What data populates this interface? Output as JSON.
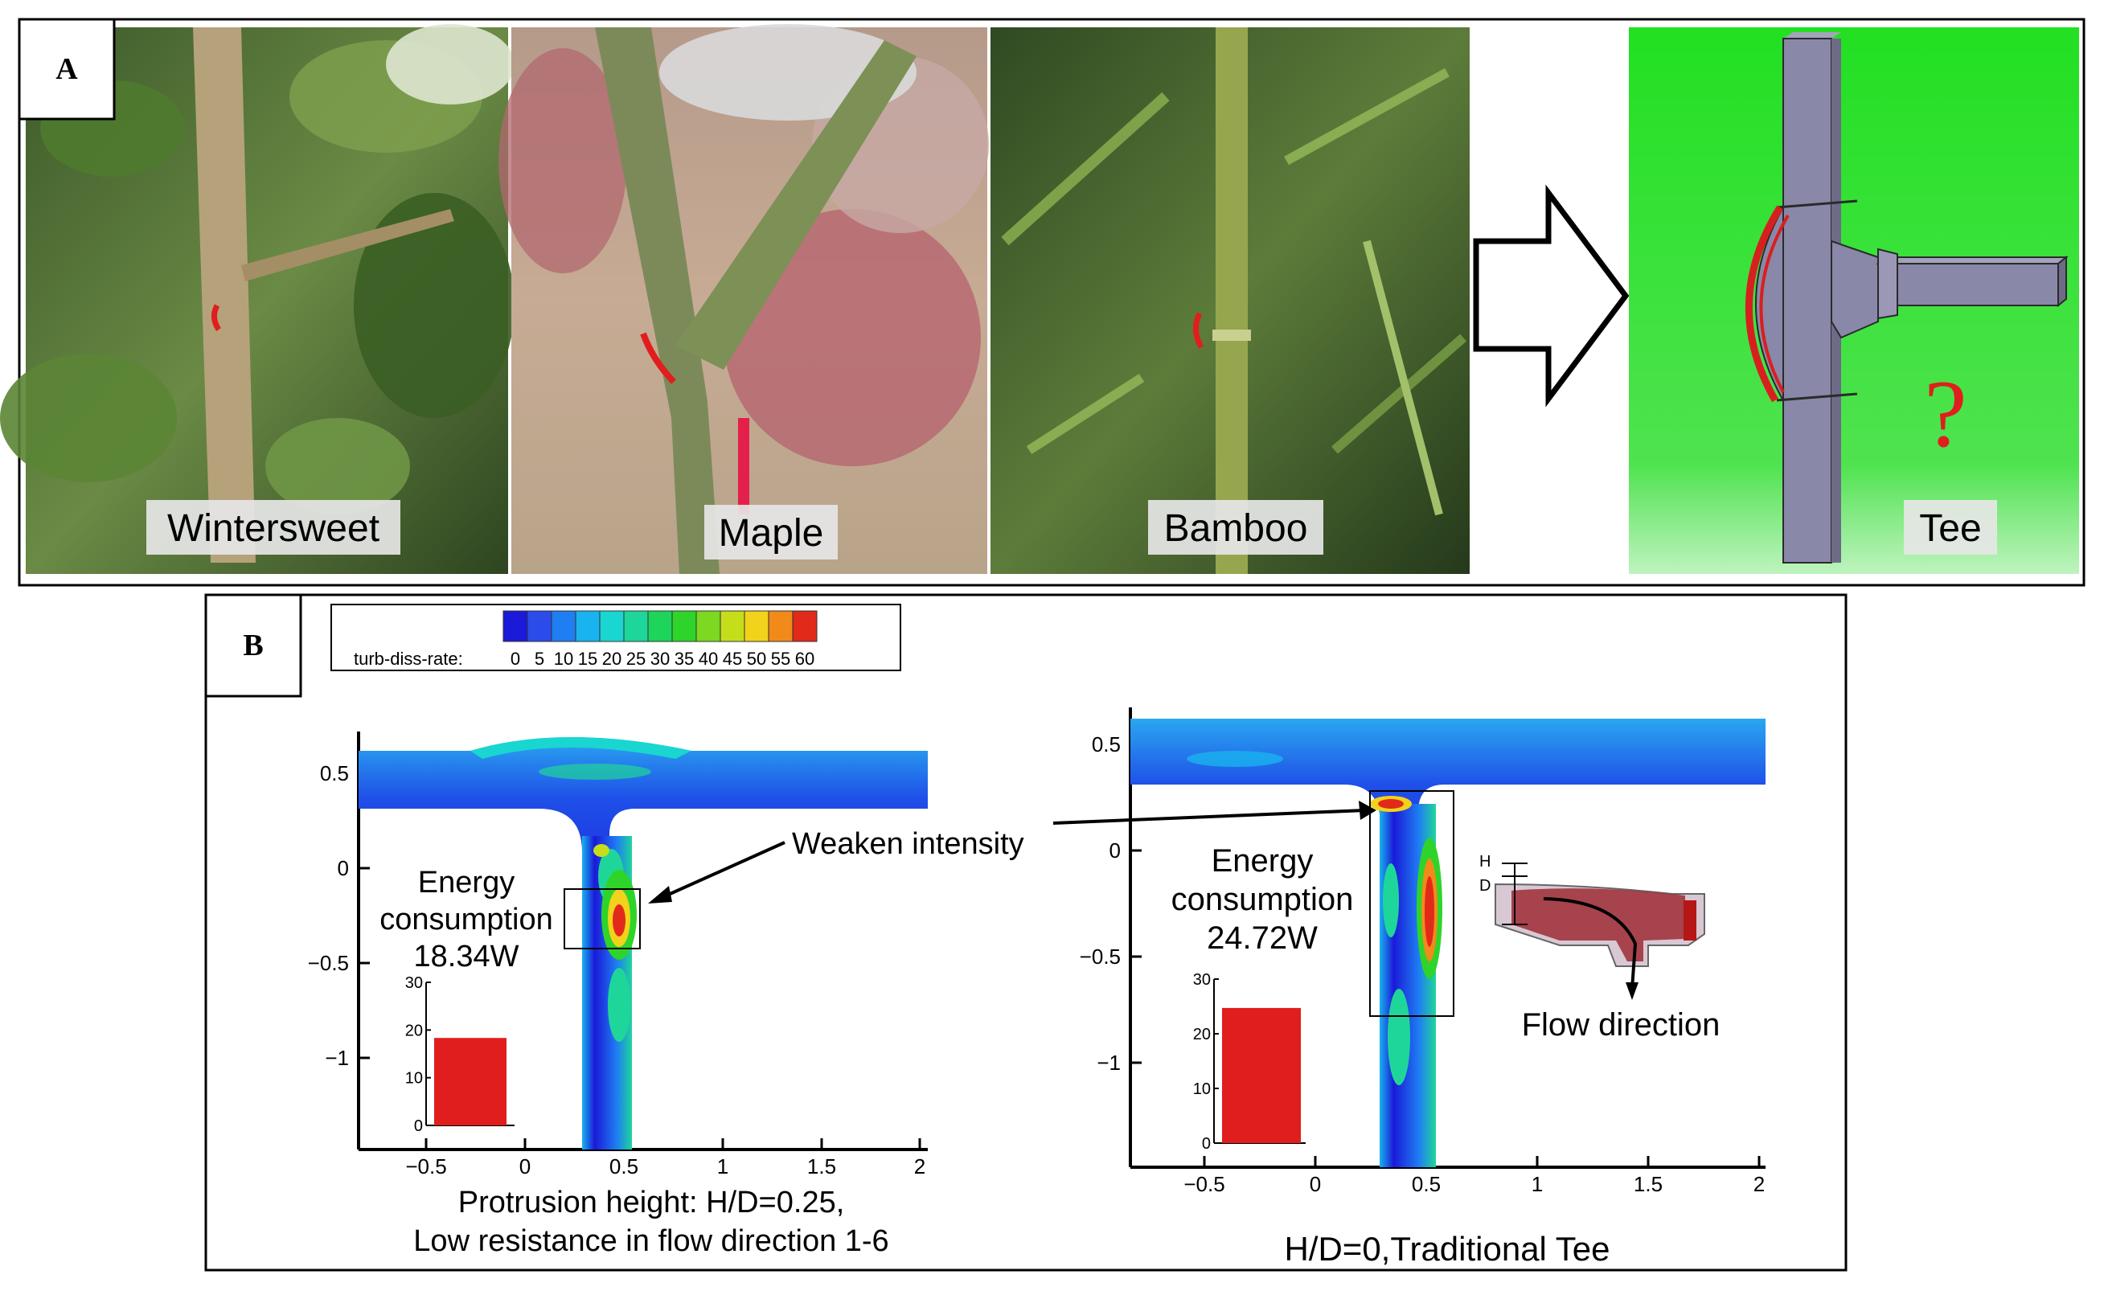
{
  "panel_a": {
    "label": "A",
    "photos": [
      {
        "name": "wintersweet",
        "caption": "Wintersweet"
      },
      {
        "name": "maple",
        "caption": "Maple"
      },
      {
        "name": "bamboo",
        "caption": "Bamboo"
      }
    ],
    "tee_caption": "Tee",
    "question_mark": "?",
    "colors": {
      "tee_bg": "#2ee02e",
      "tee_body": "#8a88a8",
      "curve": "#d81f1f"
    }
  },
  "panel_b": {
    "label": "B",
    "colorbar": {
      "title": "turb-diss-rate:",
      "ticks": [
        "0",
        "5",
        "10",
        "15",
        "20",
        "25",
        "30",
        "35",
        "40",
        "45",
        "50",
        "55",
        "60"
      ],
      "colors": [
        "#1a1ad8",
        "#2b4bea",
        "#1f7ef2",
        "#19b3ef",
        "#19d6d0",
        "#1fd69a",
        "#1fd45a",
        "#2fd42a",
        "#7cd820",
        "#c6dd1a",
        "#f2d21a",
        "#f28a1a",
        "#e22a1a"
      ]
    },
    "left_plot": {
      "y_ticks": [
        "0.5",
        "0",
        "−0.5",
        "−1"
      ],
      "x_ticks": [
        "−0.5",
        "0",
        "0.5",
        "1",
        "1.5",
        "2"
      ],
      "energy_label_1": "Energy",
      "energy_label_2": "consumption",
      "energy_value": "18.34W",
      "annotation": "Weaken intensity",
      "caption_1": "Protrusion height:  H/D=0.25,",
      "caption_2": "Low resistance in flow direction 1-6",
      "inset_bar": {
        "y_ticks": [
          "30",
          "20",
          "10",
          "0"
        ]
      }
    },
    "right_plot": {
      "y_ticks": [
        "0.5",
        "0",
        "−0.5",
        "−1"
      ],
      "x_ticks": [
        "−0.5",
        "0",
        "0.5",
        "1",
        "1.5",
        "2"
      ],
      "energy_label_1": "Energy",
      "energy_label_2": "consumption",
      "energy_value": "24.72W",
      "caption": "H/D=0,Traditional Tee",
      "inset_bar": {
        "y_ticks": [
          "30",
          "20",
          "10",
          "0"
        ]
      },
      "schematic": {
        "h_label": "H",
        "d_label": "D",
        "flow_label": "Flow direction"
      }
    }
  },
  "chart_data": [
    {
      "type": "bar",
      "categories": [
        ""
      ],
      "values": [
        18.34
      ],
      "ylim": [
        0,
        30
      ],
      "title": "",
      "xlabel": "",
      "ylabel": ""
    },
    {
      "type": "bar",
      "categories": [
        ""
      ],
      "values": [
        24.72
      ],
      "ylim": [
        0,
        30
      ],
      "title": "",
      "xlabel": "",
      "ylabel": ""
    }
  ]
}
